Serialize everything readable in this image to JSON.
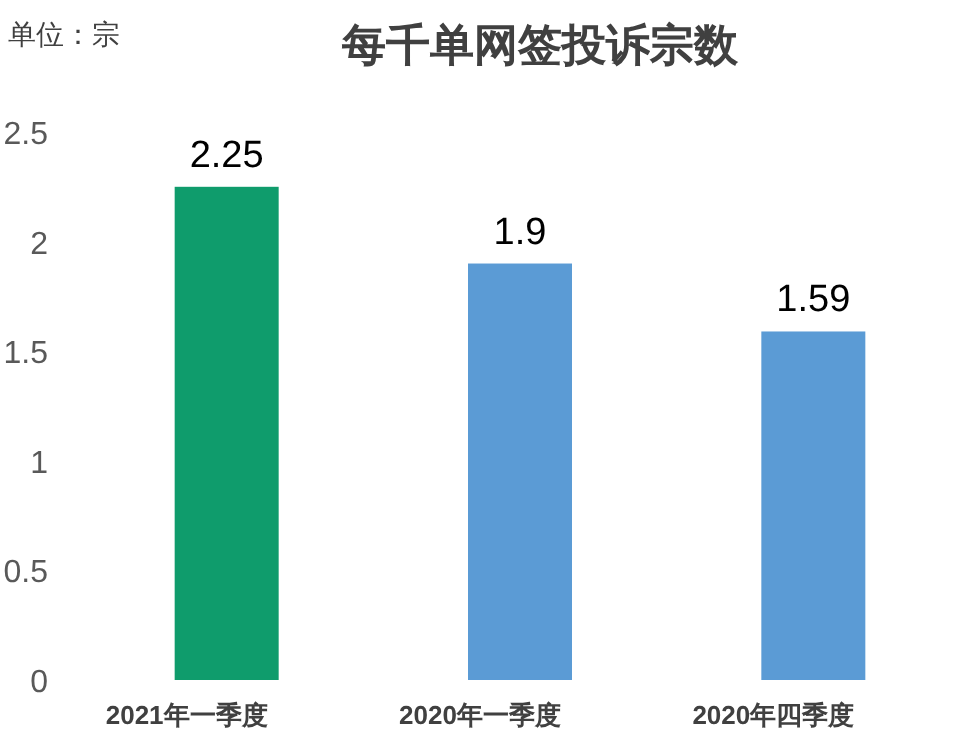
{
  "chart_data": {
    "type": "bar",
    "title": "每千单网签投诉宗数",
    "annotations": [
      "单位：宗"
    ],
    "categories": [
      "2021年一季度",
      "2020年一季度",
      "2020年四季度"
    ],
    "values": [
      2.25,
      1.9,
      1.59
    ],
    "colors": [
      "#0f9c6c",
      "#5b9bd5",
      "#5b9bd5"
    ],
    "ylim": [
      0,
      2.5
    ],
    "yticks": [
      0,
      0.5,
      1,
      1.5,
      2,
      2.5
    ],
    "data_labels": true,
    "grid": false
  }
}
